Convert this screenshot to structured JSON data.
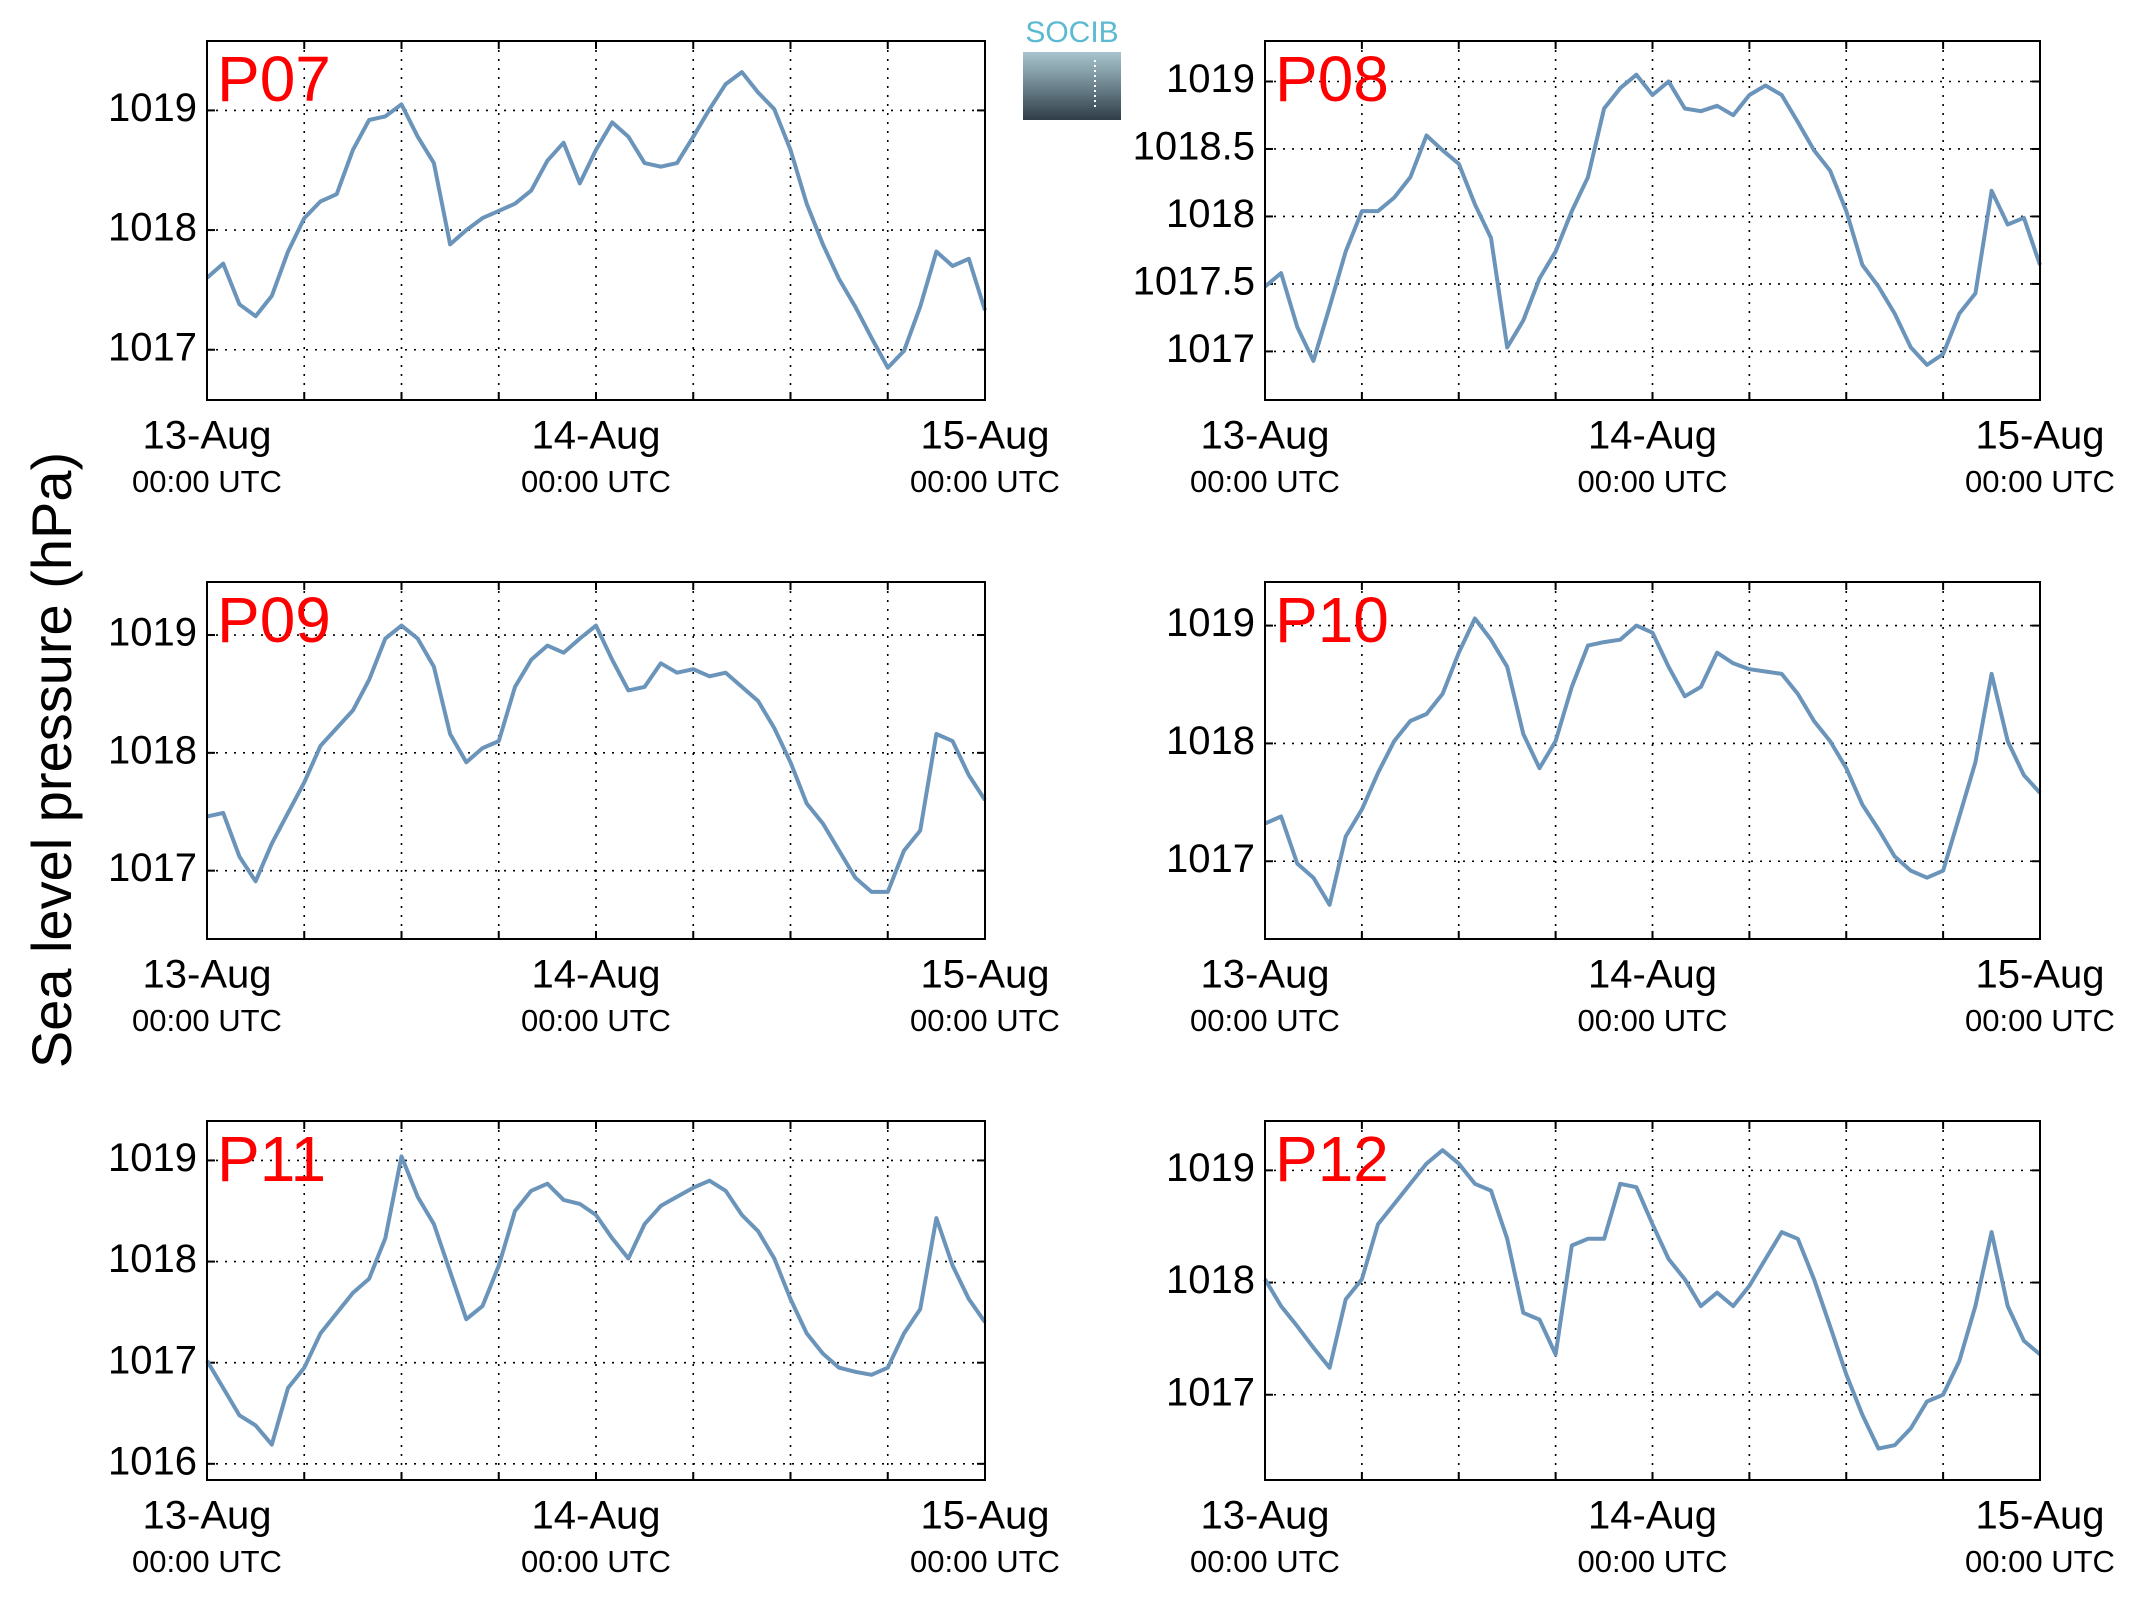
{
  "ylabel": "Sea level pressure (hPa)",
  "logo": "SOCIB",
  "chart_data": [
    {
      "type": "line",
      "title": "P07",
      "color": "#6b94ba",
      "grid": true,
      "x": [
        0,
        1,
        2,
        3,
        4,
        5,
        6,
        7,
        8,
        9,
        10,
        11,
        12,
        13,
        14,
        15,
        16,
        17,
        18,
        19,
        20,
        21,
        22,
        23,
        24,
        25,
        26,
        27,
        28,
        29,
        30,
        31,
        32,
        33,
        34,
        35,
        36,
        37,
        38,
        39,
        40,
        41,
        42,
        43,
        44,
        45,
        46,
        47,
        48
      ],
      "values": [
        1017.6,
        1017.72,
        1017.38,
        1017.28,
        1017.45,
        1017.82,
        1018.1,
        1018.24,
        1018.3,
        1018.67,
        1018.92,
        1018.95,
        1019.05,
        1018.78,
        1018.56,
        1017.88,
        1018.0,
        1018.1,
        1018.16,
        1018.22,
        1018.33,
        1018.58,
        1018.73,
        1018.39,
        1018.67,
        1018.9,
        1018.78,
        1018.56,
        1018.53,
        1018.56,
        1018.78,
        1019.01,
        1019.22,
        1019.32,
        1019.15,
        1019.01,
        1018.67,
        1018.22,
        1017.88,
        1017.59,
        1017.36,
        1017.1,
        1016.85,
        1016.99,
        1017.36,
        1017.82,
        1017.7,
        1017.76,
        1017.33
      ],
      "xlim": [
        0,
        48
      ],
      "ylim": [
        1016.58,
        1019.58
      ],
      "yticks": [
        1017,
        1018,
        1019
      ],
      "xticks": [
        {
          "value": 0,
          "label": "13-Aug",
          "sublabel": "00:00 UTC"
        },
        {
          "value": 6,
          "label": null
        },
        {
          "value": 12,
          "label": null
        },
        {
          "value": 18,
          "label": null
        },
        {
          "value": 24,
          "label": "14-Aug",
          "sublabel": "00:00 UTC"
        },
        {
          "value": 30,
          "label": null
        },
        {
          "value": 36,
          "label": null
        },
        {
          "value": 42,
          "label": null
        },
        {
          "value": 48,
          "label": "15-Aug",
          "sublabel": "00:00 UTC"
        }
      ]
    },
    {
      "type": "line",
      "title": "P08",
      "color": "#6b94ba",
      "grid": true,
      "x": [
        0,
        1,
        2,
        3,
        4,
        5,
        6,
        7,
        8,
        9,
        10,
        11,
        12,
        13,
        14,
        15,
        16,
        17,
        18,
        19,
        20,
        21,
        22,
        23,
        24,
        25,
        26,
        27,
        28,
        29,
        30,
        31,
        32,
        33,
        34,
        35,
        36,
        37,
        38,
        39,
        40,
        41,
        42,
        43,
        44,
        45,
        46,
        47,
        48
      ],
      "values": [
        1017.48,
        1017.58,
        1017.18,
        1016.93,
        1017.33,
        1017.74,
        1018.04,
        1018.04,
        1018.14,
        1018.29,
        1018.6,
        1018.49,
        1018.39,
        1018.09,
        1017.84,
        1017.03,
        1017.23,
        1017.54,
        1017.74,
        1018.04,
        1018.29,
        1018.8,
        1018.95,
        1019.05,
        1018.9,
        1019.0,
        1018.8,
        1018.78,
        1018.82,
        1018.75,
        1018.9,
        1018.97,
        1018.9,
        1018.7,
        1018.49,
        1018.34,
        1018.04,
        1017.64,
        1017.48,
        1017.28,
        1017.03,
        1016.9,
        1016.98,
        1017.28,
        1017.43,
        1018.19,
        1017.94,
        1017.99,
        1017.64
      ],
      "xlim": [
        0,
        48
      ],
      "ylim": [
        1016.64,
        1019.3
      ],
      "yticks": [
        1017,
        1017.5,
        1018,
        1018.5,
        1019
      ],
      "xticks": [
        {
          "value": 0,
          "label": "13-Aug",
          "sublabel": "00:00 UTC"
        },
        {
          "value": 6,
          "label": null
        },
        {
          "value": 12,
          "label": null
        },
        {
          "value": 18,
          "label": null
        },
        {
          "value": 24,
          "label": "14-Aug",
          "sublabel": "00:00 UTC"
        },
        {
          "value": 30,
          "label": null
        },
        {
          "value": 36,
          "label": null
        },
        {
          "value": 42,
          "label": null
        },
        {
          "value": 48,
          "label": "15-Aug",
          "sublabel": "00:00 UTC"
        }
      ]
    },
    {
      "type": "line",
      "title": "P09",
      "color": "#6b94ba",
      "grid": true,
      "x": [
        0,
        1,
        2,
        3,
        4,
        5,
        6,
        7,
        8,
        9,
        10,
        11,
        12,
        13,
        14,
        15,
        16,
        17,
        18,
        19,
        20,
        21,
        22,
        23,
        24,
        25,
        26,
        27,
        28,
        29,
        30,
        31,
        32,
        33,
        34,
        35,
        36,
        37,
        38,
        39,
        40,
        41,
        42,
        43,
        44,
        45,
        46,
        47,
        48
      ],
      "values": [
        1017.46,
        1017.49,
        1017.12,
        1016.91,
        1017.23,
        1017.49,
        1017.75,
        1018.06,
        1018.21,
        1018.36,
        1018.62,
        1018.97,
        1019.08,
        1018.97,
        1018.73,
        1018.16,
        1017.92,
        1018.04,
        1018.1,
        1018.56,
        1018.79,
        1018.91,
        1018.85,
        1018.97,
        1019.08,
        1018.79,
        1018.53,
        1018.56,
        1018.76,
        1018.68,
        1018.71,
        1018.65,
        1018.68,
        1018.56,
        1018.44,
        1018.21,
        1017.92,
        1017.57,
        1017.4,
        1017.17,
        1016.94,
        1016.82,
        1016.82,
        1017.17,
        1017.34,
        1018.16,
        1018.1,
        1017.81,
        1017.6
      ],
      "xlim": [
        0,
        48
      ],
      "ylim": [
        1016.42,
        1019.45
      ],
      "yticks": [
        1017,
        1018,
        1019
      ],
      "xticks": [
        {
          "value": 0,
          "label": "13-Aug",
          "sublabel": "00:00 UTC"
        },
        {
          "value": 6,
          "label": null
        },
        {
          "value": 12,
          "label": null
        },
        {
          "value": 18,
          "label": null
        },
        {
          "value": 24,
          "label": "14-Aug",
          "sublabel": "00:00 UTC"
        },
        {
          "value": 30,
          "label": null
        },
        {
          "value": 36,
          "label": null
        },
        {
          "value": 42,
          "label": null
        },
        {
          "value": 48,
          "label": "15-Aug",
          "sublabel": "00:00 UTC"
        }
      ]
    },
    {
      "type": "line",
      "title": "P10",
      "color": "#6b94ba",
      "grid": true,
      "x": [
        0,
        1,
        2,
        3,
        4,
        5,
        6,
        7,
        8,
        9,
        10,
        11,
        12,
        13,
        14,
        15,
        16,
        17,
        18,
        19,
        20,
        21,
        22,
        23,
        24,
        25,
        26,
        27,
        28,
        29,
        30,
        31,
        32,
        33,
        34,
        35,
        36,
        37,
        38,
        39,
        40,
        41,
        42,
        43,
        44,
        45,
        46,
        47,
        48
      ],
      "values": [
        1017.32,
        1017.38,
        1016.98,
        1016.86,
        1016.63,
        1017.21,
        1017.44,
        1017.75,
        1018.02,
        1018.19,
        1018.25,
        1018.42,
        1018.77,
        1019.06,
        1018.88,
        1018.65,
        1018.08,
        1017.79,
        1018.02,
        1018.48,
        1018.83,
        1018.86,
        1018.88,
        1019.0,
        1018.94,
        1018.65,
        1018.4,
        1018.48,
        1018.77,
        1018.68,
        1018.63,
        1018.61,
        1018.59,
        1018.42,
        1018.19,
        1018.02,
        1017.79,
        1017.48,
        1017.27,
        1017.04,
        1016.92,
        1016.86,
        1016.92,
        1017.38,
        1017.84,
        1018.59,
        1018.02,
        1017.73,
        1017.58
      ],
      "xlim": [
        0,
        48
      ],
      "ylim": [
        1016.34,
        1019.37
      ],
      "yticks": [
        1017,
        1018,
        1019
      ],
      "xticks": [
        {
          "value": 0,
          "label": "13-Aug",
          "sublabel": "00:00 UTC"
        },
        {
          "value": 6,
          "label": null
        },
        {
          "value": 12,
          "label": null
        },
        {
          "value": 18,
          "label": null
        },
        {
          "value": 24,
          "label": "14-Aug",
          "sublabel": "00:00 UTC"
        },
        {
          "value": 30,
          "label": null
        },
        {
          "value": 36,
          "label": null
        },
        {
          "value": 42,
          "label": null
        },
        {
          "value": 48,
          "label": "15-Aug",
          "sublabel": "00:00 UTC"
        }
      ]
    },
    {
      "type": "line",
      "title": "P11",
      "color": "#6b94ba",
      "grid": true,
      "x": [
        0,
        1,
        2,
        3,
        4,
        5,
        6,
        7,
        8,
        9,
        10,
        11,
        12,
        13,
        14,
        15,
        16,
        17,
        18,
        19,
        20,
        21,
        22,
        23,
        24,
        25,
        26,
        27,
        28,
        29,
        30,
        31,
        32,
        33,
        34,
        35,
        36,
        37,
        38,
        39,
        40,
        41,
        42,
        43,
        44,
        45,
        46,
        47,
        48
      ],
      "values": [
        1017.02,
        1016.75,
        1016.48,
        1016.38,
        1016.19,
        1016.75,
        1016.95,
        1017.29,
        1017.49,
        1017.69,
        1017.83,
        1018.23,
        1019.04,
        1018.64,
        1018.37,
        1017.9,
        1017.43,
        1017.56,
        1017.96,
        1018.5,
        1018.7,
        1018.77,
        1018.61,
        1018.57,
        1018.46,
        1018.23,
        1018.03,
        1018.37,
        1018.55,
        1018.64,
        1018.73,
        1018.8,
        1018.7,
        1018.46,
        1018.3,
        1018.03,
        1017.63,
        1017.29,
        1017.09,
        1016.95,
        1016.91,
        1016.88,
        1016.95,
        1017.29,
        1017.53,
        1018.43,
        1017.96,
        1017.63,
        1017.4
      ],
      "xlim": [
        0,
        48
      ],
      "ylim": [
        1015.84,
        1019.39
      ],
      "yticks": [
        1016,
        1017,
        1018,
        1019
      ],
      "xticks": [
        {
          "value": 0,
          "label": "13-Aug",
          "sublabel": "00:00 UTC"
        },
        {
          "value": 6,
          "label": null
        },
        {
          "value": 12,
          "label": null
        },
        {
          "value": 18,
          "label": null
        },
        {
          "value": 24,
          "label": "14-Aug",
          "sublabel": "00:00 UTC"
        },
        {
          "value": 30,
          "label": null
        },
        {
          "value": 36,
          "label": null
        },
        {
          "value": 42,
          "label": null
        },
        {
          "value": 48,
          "label": "15-Aug",
          "sublabel": "00:00 UTC"
        }
      ]
    },
    {
      "type": "line",
      "title": "P12",
      "color": "#6b94ba",
      "grid": true,
      "x": [
        0,
        1,
        2,
        3,
        4,
        5,
        6,
        7,
        8,
        9,
        10,
        11,
        12,
        13,
        14,
        15,
        16,
        17,
        18,
        19,
        20,
        21,
        22,
        23,
        24,
        25,
        26,
        27,
        28,
        29,
        30,
        31,
        32,
        33,
        34,
        35,
        36,
        37,
        38,
        39,
        40,
        41,
        42,
        43,
        44,
        45,
        46,
        47,
        48
      ],
      "values": [
        1018.03,
        1017.79,
        1017.61,
        1017.42,
        1017.24,
        1017.85,
        1018.03,
        1018.52,
        1018.7,
        1018.88,
        1019.06,
        1019.18,
        1019.06,
        1018.88,
        1018.82,
        1018.39,
        1017.73,
        1017.67,
        1017.36,
        1018.33,
        1018.39,
        1018.39,
        1018.88,
        1018.85,
        1018.52,
        1018.21,
        1018.03,
        1017.79,
        1017.91,
        1017.79,
        1017.97,
        1018.21,
        1018.45,
        1018.39,
        1018.03,
        1017.61,
        1017.18,
        1016.82,
        1016.52,
        1016.55,
        1016.7,
        1016.94,
        1017.0,
        1017.3,
        1017.79,
        1018.45,
        1017.79,
        1017.48,
        1017.36
      ],
      "xlim": [
        0,
        48
      ],
      "ylim": [
        1016.24,
        1019.44
      ],
      "yticks": [
        1017,
        1018,
        1019
      ],
      "xticks": [
        {
          "value": 0,
          "label": "13-Aug",
          "sublabel": "00:00 UTC"
        },
        {
          "value": 6,
          "label": null
        },
        {
          "value": 12,
          "label": null
        },
        {
          "value": 18,
          "label": null
        },
        {
          "value": 24,
          "label": "14-Aug",
          "sublabel": "00:00 UTC"
        },
        {
          "value": 30,
          "label": null
        },
        {
          "value": 36,
          "label": null
        },
        {
          "value": 42,
          "label": null
        },
        {
          "value": 48,
          "label": "15-Aug",
          "sublabel": "00:00 UTC"
        }
      ]
    }
  ]
}
